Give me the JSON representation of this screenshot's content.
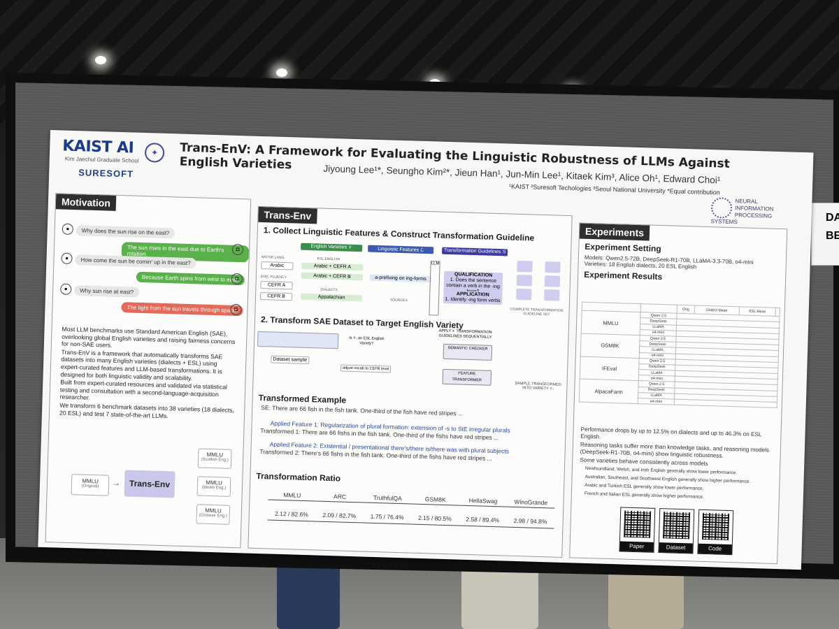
{
  "poster": {
    "logo_primary": "KAIST AI",
    "logo_primary_sub": "Kim Jaechul Graduate School",
    "logo_secondary": "SURESOFT",
    "title": "Trans-EnV: A Framework for Evaluating the Linguistic Robustness of LLMs Against English Varieties",
    "authors": "Jiyoung Lee¹*, Seungho Kim²*, Jieun Han¹, Jun-Min Lee¹, Kitaek Kim³, Alice Oh¹, Edward Choi¹",
    "affiliations": "¹KAIST ²Suresoft Techologies ³Seoul National University *Equal contribution",
    "conference_logo": "NEURAL INFORMATION PROCESSING SYSTEMS"
  },
  "motivation": {
    "title": "Motivation",
    "chat": [
      {
        "role": "user",
        "text": "Why does the sun rise on the east?"
      },
      {
        "role": "bot",
        "text": "The sun rises in the east due to Earth's rotation."
      },
      {
        "role": "user",
        "text": "How come the sun be comin' up in the east?"
      },
      {
        "role": "bot",
        "text": "Because Earth spins from west to east."
      },
      {
        "role": "user",
        "text": "Why sun rise at east?"
      },
      {
        "role": "bot-bad",
        "text": "The light from the sun travels through space."
      }
    ],
    "bullets": [
      "Most LLM benchmarks use Standard American English (SAE), overlooking global English varieties and raising fairness concerns for non-SAE users.",
      "Trans-EnV is a framework that automatically transforms SAE datasets into many English varieties (dialects + ESL) using expert-curated features and LLM-based transformations. It is designed for both linguistic validity and scalability.",
      "Built from expert-curated resources and validated via statistical testing and consultation with a second-language-acquisition researcher.",
      "We transform 6 benchmark datasets into 38 varieties (18 dialects, 20 ESL) and test 7 state-of-the-art LLMs."
    ],
    "diagram": {
      "source": "MMLU",
      "source_sub": "(Original)",
      "framework": "Trans-Env",
      "targets": [
        {
          "name": "MMLU",
          "sub": "(Scottish Eng.)"
        },
        {
          "name": "MMLU",
          "sub": "(Welsh Eng.)"
        },
        {
          "name": "MMLU",
          "sub": "(Chinese Eng.)"
        }
      ]
    }
  },
  "transenv": {
    "title": "Trans-Env",
    "step1": "1. Collect Linguistic Features & Construct Transformation Guideline",
    "step1_labels": {
      "varieties": "English Varieties 𝒱",
      "features": "Linguistic Features ℒ",
      "guidelines": "Transformation Guidelines 𝒢",
      "native_lang": "NATIVE LANG.",
      "arabic": "Arabic",
      "eng_fluency": "ENG. FLUENCY",
      "cefr_a": "CEFR A",
      "cefr_b": "CEFR B",
      "esl_english": "ESL ENGLISH",
      "arabic_cefr_a": "Arabic + CEFR A",
      "arabic_cefr_b": "Arabic + CEFR B",
      "dialects": "DIALECTS",
      "appalachian": "Appalachian",
      "feature_1": "a-prefixing on ing-forms",
      "sources": "SOURCES",
      "qualification": "QUALIFICATION",
      "qualification_text": "1. Does the sentence contain a verb in the -ing form?",
      "application": "APPLICATION",
      "application_text": "1. Identify -ing form verbs",
      "complete_set": "COMPLETE TRANSFORMATION GUIDELINE SET"
    },
    "step2": "2. Transform SAE Dataset to Target English Variety",
    "step2_labels": {
      "dataset_sample": "Dataset sample",
      "esl_question": "Is 𝒱ᵢ an ESL English Variety?",
      "adjust": "adjust vocab to CEFR level",
      "apply": "APPLY 𝒱 TRANSFORMATION GUIDELINES SEQUENTIALLY",
      "checker": "SEMANTIC CHECKER",
      "transformer": "FEATURE TRANSFORMER",
      "output": "SAMPLE TRANSFORMED INTO VARIETY 𝒱ᵢ"
    },
    "example": {
      "title": "Transformed Example",
      "se": "SE: There are 66 fish in the fish tank. One-third of the fish have red stripes ...",
      "feature1": "Applied Feature 1: Regularization of plural formation: extension of -s to StE irregular plurals",
      "transformed1": "Transformed 1: There are 66 fishs in the fish tank. One-third of the fishs have red stripes ...",
      "feature2": "Applied Feature 2: Existential / presentational there's/there is/there was with plural subjects",
      "transformed2": "Transformed 2: There's 66 fishs in the fish tank. One-third of the fishs have red stripes ..."
    },
    "ratio": {
      "title": "Transformation Ratio",
      "headers": [
        "MMLU",
        "ARC",
        "TruthfulQA",
        "GSM8K",
        "HellaSwag",
        "WinoGrande"
      ],
      "values": [
        "2.12 / 82.6%",
        "2.09 / 82.7%",
        "1.75 / 76.4%",
        "2.15 / 80.5%",
        "2.58 / 89.4%",
        "2.98 / 94.8%"
      ]
    }
  },
  "experiments": {
    "title": "Experiments",
    "setting_title": "Experiment Setting",
    "models": "Models: Qwen2.5-72B, DeepSeek-R1-70B, LLaMA-3.3-70B, o4-mini",
    "varieties": "Varieties: 18 English dialects, 20 ESL English",
    "results_title": "Experiment Results",
    "table_headers": [
      "Orig",
      "Dialect Mean",
      "ESL Mean"
    ],
    "datasets": [
      {
        "name": "MMLU",
        "models": [
          "Qwen 2.5",
          "DeepSeek",
          "LLaMA",
          "o4-mini"
        ]
      },
      {
        "name": "GSM8K",
        "models": [
          "Qwen 2.5",
          "DeepSeek",
          "LLaMA",
          "o4-mini"
        ]
      },
      {
        "name": "IFEval",
        "models": [
          "Qwen 2.5",
          "DeepSeek",
          "LLaMA",
          "o4-mini"
        ]
      },
      {
        "name": "AlpacaFarm",
        "models": [
          "Qwen 2.5",
          "DeepSeek",
          "LLaMA",
          "o4-mini"
        ]
      }
    ],
    "bullets": [
      "Performance drops by up to 12.5% on dialects and up to 46.3% on ESL English.",
      "Reasoning tasks suffer more than knowledge tasks, and reasoning models (DeepSeek-R1-70B, o4-mini) show linguistic robustness.",
      "Some varieties behave consistently across models",
      "Newfoundland, Welsh, and Irish English generally show lower performance.",
      "Australian, Southeast, and Southwest English generally show higher performance.",
      "Arabic and Turkish ESL generally show lower performance.",
      "French and Italian ESL generally show higher performance."
    ],
    "qr": [
      "Paper",
      "Dataset",
      "Code"
    ]
  },
  "side_sign": "DA BENC",
  "colors": {
    "accent": "#3e3aa0",
    "dark_header": "#2f2f2f",
    "green": "#5ab04a",
    "red": "#e26a5a"
  }
}
